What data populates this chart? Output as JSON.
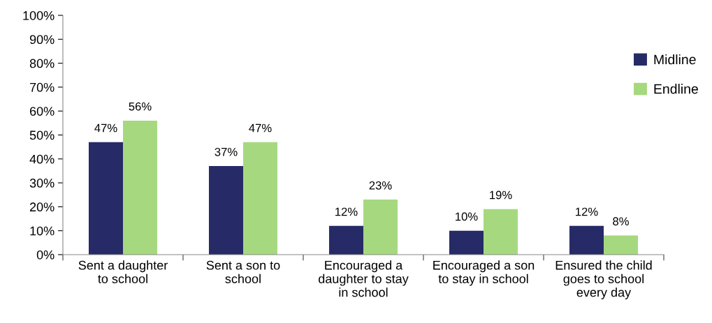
{
  "chart_data": {
    "type": "bar",
    "categories": [
      "Sent a daughter\nto school",
      "Sent a son to\nschool",
      "Encouraged a\ndaughter to stay\nin school",
      "Encouraged a son\nto stay in school",
      "Ensured the child\ngoes to school\nevery day"
    ],
    "series": [
      {
        "name": "Midline",
        "color": "#262b68",
        "values": [
          47,
          37,
          12,
          10,
          12
        ],
        "value_labels": [
          "47%",
          "37%",
          "12%",
          "10%",
          "12%"
        ]
      },
      {
        "name": "Endline",
        "color": "#a6d97f",
        "values": [
          56,
          47,
          23,
          19,
          8
        ],
        "value_labels": [
          "56%",
          "47%",
          "23%",
          "19%",
          "8%"
        ]
      }
    ],
    "ylim": [
      0,
      100
    ],
    "yticks": [
      {
        "value": 0,
        "label": "0%"
      },
      {
        "value": 10,
        "label": "10%"
      },
      {
        "value": 20,
        "label": "20%"
      },
      {
        "value": 30,
        "label": "30%"
      },
      {
        "value": 40,
        "label": "40%"
      },
      {
        "value": 50,
        "label": "50%"
      },
      {
        "value": 60,
        "label": "60%"
      },
      {
        "value": 70,
        "label": "70%"
      },
      {
        "value": 80,
        "label": "80%"
      },
      {
        "value": 90,
        "label": "90%"
      },
      {
        "value": 100,
        "label": "100%"
      }
    ],
    "grid": false,
    "legend": "right"
  }
}
